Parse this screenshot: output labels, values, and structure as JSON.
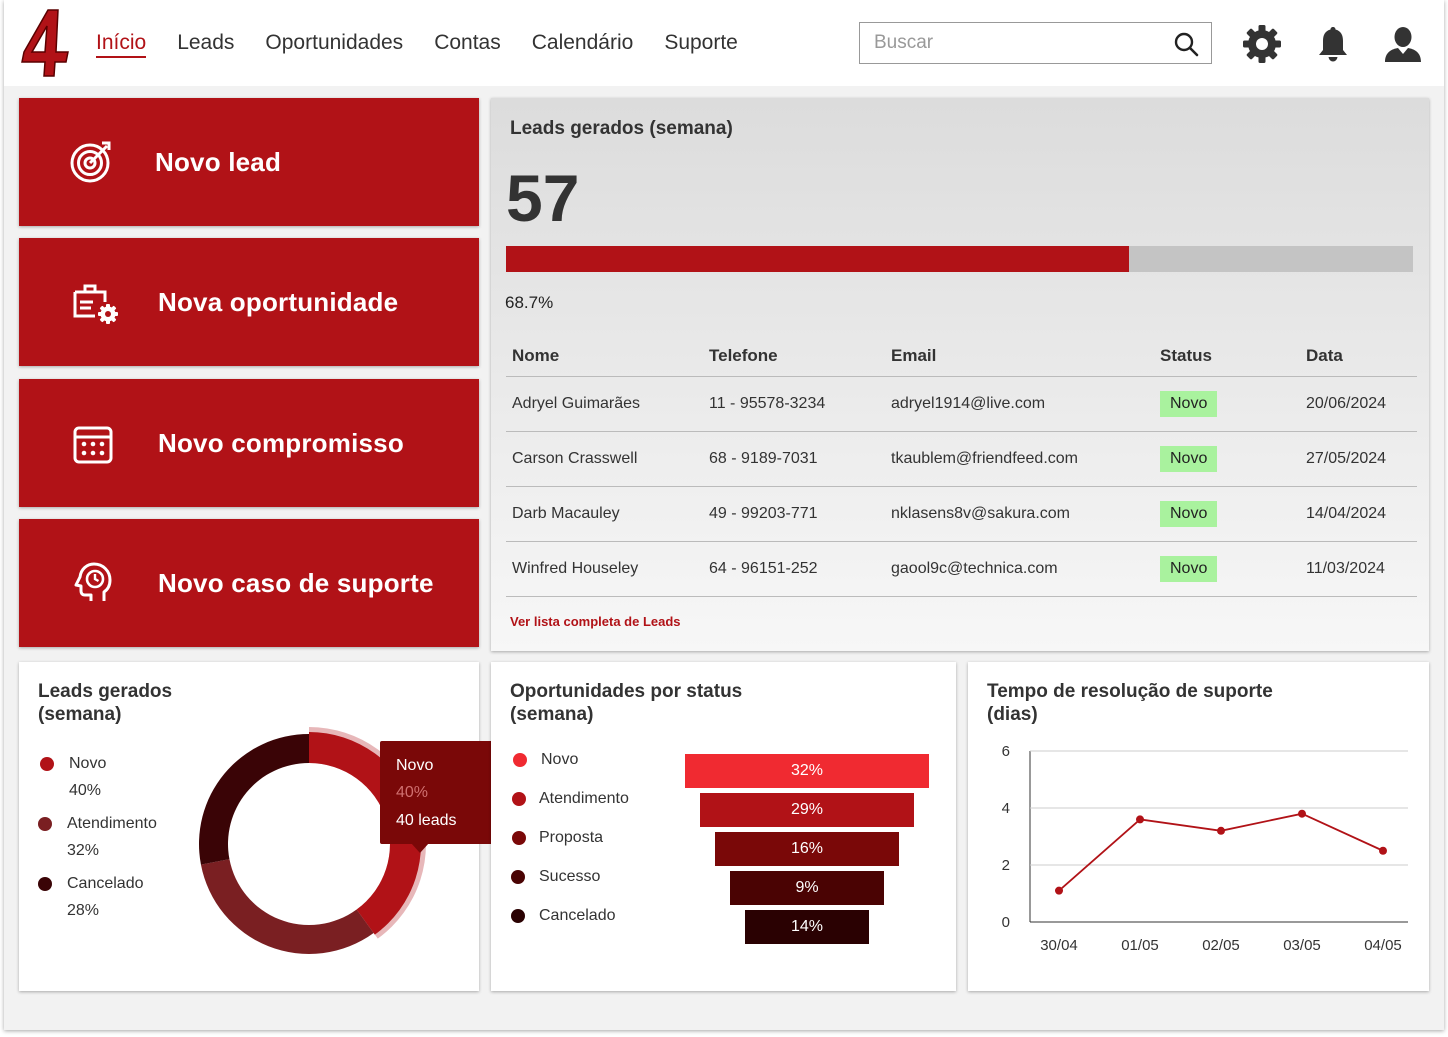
{
  "nav": {
    "items": [
      "Início",
      "Leads",
      "Oportunidades",
      "Contas",
      "Calendário",
      "Suporte"
    ],
    "active": 0
  },
  "search": {
    "placeholder": "Buscar"
  },
  "header_icons": [
    "gear-icon",
    "bell-icon",
    "user-icon"
  ],
  "actions": [
    {
      "label": "Novo lead",
      "icon": "target-icon"
    },
    {
      "label": "Nova oportunidade",
      "icon": "briefcase-gear-icon"
    },
    {
      "label": "Novo compromisso",
      "icon": "calendar-icon"
    },
    {
      "label": "Novo caso de suporte",
      "icon": "head-clock-icon"
    }
  ],
  "colors": {
    "brand": "#b11217",
    "badge": "#a9f29e"
  },
  "leads_week": {
    "title": "Leads gerados (semana)",
    "count": "57",
    "progress": 0.687,
    "progress_label": "68.7%",
    "columns": [
      "Nome",
      "Telefone",
      "Email",
      "Status",
      "Data"
    ],
    "rows": [
      [
        "Adryel Guimarães",
        "11 - 95578-3234",
        "adryel1914@live.com",
        "Novo",
        "20/06/2024"
      ],
      [
        "Carson Crasswell",
        "68 - 9189-7031",
        "tkaublem@friendfeed.com",
        "Novo",
        "27/05/2024"
      ],
      [
        "Darb Macauley",
        "49 - 99203-771",
        "nklasens8v@sakura.com",
        "Novo",
        "14/04/2024"
      ],
      [
        "Winfred Houseley",
        "64 - 96151-252",
        "gaool9c@technica.com",
        "Novo",
        "11/03/2024"
      ]
    ],
    "link": "Ver lista completa de Leads"
  },
  "chart_data": [
    {
      "type": "pie",
      "title": "Leads gerados (semana)",
      "categories": [
        "Novo",
        "Atendimento",
        "Cancelado"
      ],
      "values": [
        40,
        32,
        28
      ],
      "labels": [
        "40%",
        "32%",
        "28%"
      ],
      "colors": [
        "#b11217",
        "#7a1f22",
        "#3a0406"
      ],
      "tooltip": {
        "name": "Novo",
        "pct": "40%",
        "value": "40 leads"
      }
    },
    {
      "type": "bar",
      "title": "Oportunidades por status (semana)",
      "categories": [
        "Novo",
        "Atendimento",
        "Proposta",
        "Sucesso",
        "Cancelado"
      ],
      "values": [
        32,
        29,
        16,
        9,
        14
      ],
      "labels": [
        "32%",
        "29%",
        "16%",
        "9%",
        "14%"
      ],
      "colors": [
        "#f02a31",
        "#b11217",
        "#7a0808",
        "#4a0303",
        "#2a0102"
      ]
    },
    {
      "type": "line",
      "title": "Tempo de resolução de suporte (dias)",
      "x": [
        "30/04",
        "01/05",
        "02/05",
        "03/05",
        "04/05"
      ],
      "y": [
        1.1,
        3.6,
        3.2,
        3.8,
        2.5
      ],
      "yticks": [
        "0",
        "2",
        "4",
        "6"
      ],
      "ylim": [
        0,
        6
      ],
      "grid": true,
      "color": "#b11217"
    }
  ]
}
